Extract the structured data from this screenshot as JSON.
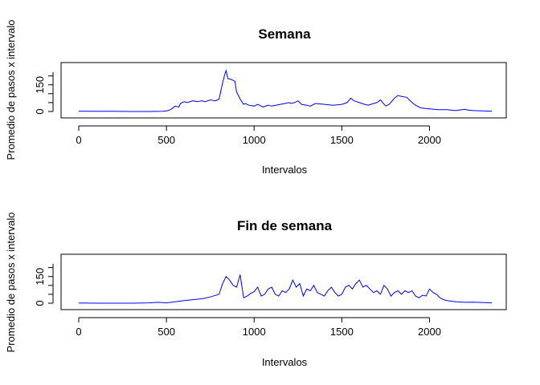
{
  "chart_data": [
    {
      "type": "line",
      "title": "Semana",
      "xlabel": "Intervalos",
      "ylabel": "Promedio de pasos x intervalo",
      "xlim": [
        0,
        2355
      ],
      "ylim": [
        0,
        230
      ],
      "xticks": [
        0,
        500,
        1000,
        1500,
        2000
      ],
      "yticks": [
        0,
        150
      ],
      "color": "#0000ff",
      "series": [
        {
          "x": [
            0,
            100,
            200,
            300,
            400,
            480,
            510,
            530,
            550,
            570,
            580,
            600,
            620,
            650,
            680,
            700,
            720,
            750,
            780,
            800,
            820,
            830,
            840,
            850,
            870,
            890,
            900,
            920,
            940,
            950,
            970,
            1000,
            1020,
            1050,
            1080,
            1100,
            1150,
            1200,
            1210,
            1230,
            1250,
            1270,
            1300,
            1320,
            1350,
            1400,
            1450,
            1500,
            1530,
            1550,
            1570,
            1600,
            1630,
            1650,
            1680,
            1700,
            1720,
            1750,
            1770,
            1800,
            1820,
            1840,
            1870,
            1900,
            1920,
            1950,
            2000,
            2050,
            2100,
            2150,
            2200,
            2220,
            2250,
            2300,
            2355
          ],
          "y": [
            2,
            1,
            1,
            0,
            0,
            1,
            5,
            15,
            30,
            25,
            45,
            55,
            50,
            60,
            55,
            60,
            55,
            65,
            60,
            70,
            160,
            200,
            230,
            185,
            180,
            170,
            110,
            70,
            40,
            45,
            35,
            30,
            40,
            25,
            35,
            30,
            40,
            50,
            45,
            50,
            60,
            40,
            35,
            30,
            45,
            40,
            35,
            40,
            50,
            75,
            60,
            50,
            40,
            35,
            45,
            50,
            65,
            30,
            40,
            75,
            90,
            85,
            80,
            50,
            35,
            20,
            15,
            10,
            10,
            5,
            12,
            8,
            5,
            3,
            2
          ]
        }
      ]
    },
    {
      "type": "line",
      "title": "Fin de semana",
      "xlabel": "Intervalos",
      "ylabel": "Promedio de pasos x intervalo",
      "xlim": [
        0,
        2355
      ],
      "ylim": [
        0,
        230
      ],
      "xticks": [
        0,
        500,
        1000,
        1500,
        2000
      ],
      "yticks": [
        0,
        150
      ],
      "color": "#0000ff",
      "series": [
        {
          "x": [
            0,
            100,
            200,
            300,
            400,
            450,
            500,
            550,
            600,
            650,
            700,
            750,
            800,
            820,
            840,
            860,
            880,
            900,
            920,
            940,
            960,
            980,
            1000,
            1020,
            1040,
            1060,
            1080,
            1100,
            1120,
            1140,
            1160,
            1180,
            1200,
            1220,
            1240,
            1260,
            1280,
            1300,
            1320,
            1340,
            1360,
            1380,
            1400,
            1420,
            1440,
            1460,
            1480,
            1500,
            1520,
            1540,
            1560,
            1580,
            1600,
            1620,
            1640,
            1660,
            1680,
            1700,
            1720,
            1740,
            1760,
            1780,
            1800,
            1820,
            1840,
            1860,
            1880,
            1900,
            1920,
            1940,
            1960,
            1980,
            2000,
            2020,
            2040,
            2060,
            2080,
            2100,
            2150,
            2200,
            2250,
            2300,
            2355
          ],
          "y": [
            1,
            0,
            0,
            0,
            2,
            5,
            2,
            8,
            15,
            20,
            25,
            35,
            50,
            110,
            150,
            130,
            100,
            90,
            160,
            30,
            40,
            55,
            65,
            90,
            40,
            50,
            80,
            90,
            50,
            40,
            70,
            60,
            80,
            130,
            90,
            110,
            40,
            80,
            70,
            100,
            60,
            50,
            40,
            70,
            90,
            60,
            40,
            50,
            90,
            100,
            80,
            110,
            130,
            90,
            100,
            80,
            60,
            70,
            50,
            100,
            80,
            40,
            60,
            70,
            50,
            70,
            60,
            70,
            40,
            30,
            45,
            40,
            80,
            60,
            50,
            30,
            20,
            15,
            8,
            5,
            6,
            4,
            2
          ]
        }
      ]
    }
  ]
}
